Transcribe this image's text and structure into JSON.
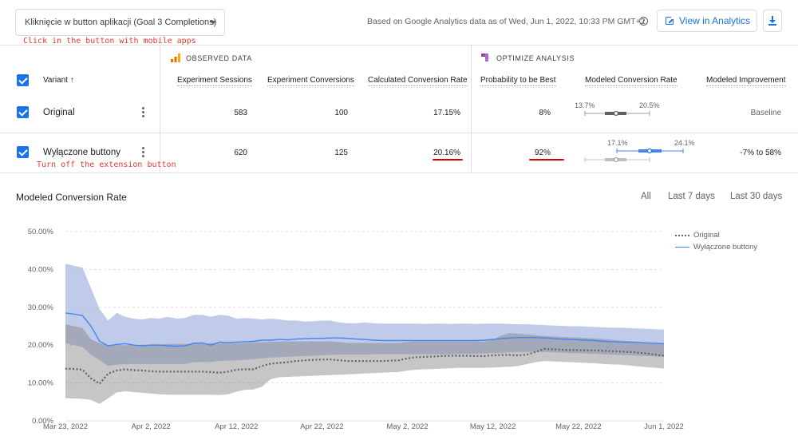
{
  "toolbar": {
    "goal_select_value": "Kliknięcie w button aplikacji (Goal 3 Completions)",
    "based_on_text": "Based on Google Analytics data as of Wed, Jun 1, 2022, 10:33 PM GMT+2.",
    "view_button_label": "View in Analytics",
    "icons": [
      "chevron-down-icon",
      "info-icon",
      "open-external-icon",
      "download-icon"
    ]
  },
  "annotations": {
    "goal_note": "Click in the button with mobile apps",
    "variant_note": "Turn off the extension button"
  },
  "table": {
    "observed_header": "OBSERVED DATA",
    "optimize_header": "OPTIMIZE ANALYSIS",
    "columns": {
      "variant": "Variant ↑",
      "sessions": "Experiment Sessions",
      "conversions": "Experiment Conversions",
      "calc_rate": "Calculated Conversion Rate",
      "prob_best": "Probability to be Best",
      "modeled_rate": "Modeled Conversion Rate",
      "modeled_improvement": "Modeled Improvement"
    },
    "rows": [
      {
        "name": "Original",
        "sessions": "583",
        "conversions": "100",
        "calc_rate": "17.15%",
        "prob_best": "8%",
        "ci_low": "13.7%",
        "ci_high": "20.5%",
        "ci": [
          13.7,
          20.5
        ],
        "improvement": "Baseline"
      },
      {
        "name": "Wyłączone buttony",
        "sessions": "620",
        "conversions": "125",
        "calc_rate": "20.16%",
        "prob_best": "92%",
        "ci_low": "17.1%",
        "ci_high": "24.1%",
        "ci": [
          17.1,
          24.1
        ],
        "improvement": "-7% to 58%"
      }
    ]
  },
  "chart_section": {
    "title": "Modeled Conversion Rate",
    "ranges": [
      "All",
      "Last 7 days",
      "Last 30 days"
    ]
  },
  "chart_data": {
    "type": "line",
    "title": "Modeled Conversion Rate",
    "x": [
      "Mar 23",
      "Mar 24",
      "Mar 25",
      "Mar 26",
      "Mar 27",
      "Mar 28",
      "Mar 29",
      "Mar 30",
      "Mar 31",
      "Apr 1",
      "Apr 2",
      "Apr 3",
      "Apr 4",
      "Apr 5",
      "Apr 6",
      "Apr 7",
      "Apr 8",
      "Apr 9",
      "Apr 10",
      "Apr 11",
      "Apr 12",
      "Apr 13",
      "Apr 14",
      "Apr 15",
      "Apr 16",
      "Apr 17",
      "Apr 18",
      "Apr 19",
      "Apr 20",
      "Apr 21",
      "Apr 22",
      "Apr 23",
      "Apr 24",
      "Apr 25",
      "Apr 26",
      "Apr 27",
      "Apr 28",
      "Apr 29",
      "Apr 30",
      "May 1",
      "May 2",
      "May 3",
      "May 4",
      "May 5",
      "May 6",
      "May 7",
      "May 8",
      "May 9",
      "May 10",
      "May 11",
      "May 12",
      "May 13",
      "May 14",
      "May 15",
      "May 16",
      "May 17",
      "May 18",
      "May 19",
      "May 20",
      "May 21",
      "May 22",
      "May 23",
      "May 24",
      "May 25",
      "May 26",
      "May 27",
      "May 28",
      "May 29",
      "May 30",
      "May 31",
      "Jun 1"
    ],
    "x_ticks": [
      "Mar 23, 2022",
      "Apr 2, 2022",
      "Apr 12, 2022",
      "Apr 22, 2022",
      "May 2, 2022",
      "May 12, 2022",
      "May 22, 2022",
      "Jun 1, 2022"
    ],
    "y_ticks": [
      "0.00%",
      "10.00%",
      "20.00%",
      "30.00%",
      "40.00%",
      "50.00%"
    ],
    "ylim": [
      0,
      50
    ],
    "grid": true,
    "legend_position": "top-right",
    "series": [
      {
        "name": "Original",
        "style": "dotted",
        "color": "#5f6368",
        "values": [
          13.8,
          13.7,
          13.5,
          11.2,
          9.8,
          12.5,
          13.3,
          13.6,
          13.4,
          13.3,
          13.1,
          13.0,
          13.0,
          13.0,
          13.0,
          13.0,
          13.0,
          12.9,
          12.7,
          13.0,
          13.5,
          13.6,
          13.6,
          14.5,
          15.1,
          15.3,
          15.5,
          15.8,
          16.0,
          16.1,
          16.2,
          16.2,
          16.0,
          15.8,
          15.8,
          15.8,
          15.8,
          15.8,
          15.9,
          16.0,
          16.5,
          16.8,
          16.9,
          17.0,
          17.1,
          17.2,
          17.2,
          17.2,
          17.1,
          17.1,
          17.3,
          17.4,
          17.4,
          17.3,
          17.5,
          18.2,
          19.0,
          18.9,
          18.8,
          18.7,
          18.7,
          18.6,
          18.6,
          18.5,
          18.4,
          18.3,
          18.2,
          18.0,
          17.8,
          17.5,
          17.2
        ],
        "band_low": [
          6.0,
          5.9,
          5.8,
          5.5,
          4.5,
          6.0,
          7.5,
          7.8,
          7.6,
          7.4,
          7.2,
          7.0,
          6.9,
          6.9,
          6.9,
          6.9,
          6.9,
          6.9,
          6.8,
          7.0,
          7.7,
          8.2,
          8.3,
          9.0,
          11.0,
          11.5,
          11.6,
          11.7,
          11.8,
          11.9,
          12.0,
          12.1,
          12.2,
          12.3,
          12.4,
          12.5,
          12.6,
          12.7,
          12.8,
          12.9,
          13.3,
          13.5,
          13.6,
          13.7,
          13.8,
          13.9,
          14.0,
          14.0,
          14.0,
          14.0,
          14.1,
          14.2,
          14.3,
          14.5,
          15.0,
          15.5,
          15.8,
          15.7,
          15.6,
          15.5,
          15.4,
          15.3,
          15.2,
          15.0,
          14.9,
          14.8,
          14.6,
          14.4,
          14.2,
          14.0,
          13.8
        ],
        "band_high": [
          25.5,
          25.0,
          24.5,
          21.5,
          20.5,
          20.0,
          20.0,
          20.0,
          20.0,
          20.1,
          20.2,
          20.2,
          20.3,
          20.3,
          20.3,
          20.4,
          20.4,
          20.5,
          20.5,
          20.5,
          20.5,
          20.6,
          20.7,
          20.8,
          20.9,
          21.0,
          21.0,
          21.0,
          21.0,
          21.0,
          21.0,
          21.0,
          20.8,
          20.6,
          20.6,
          20.6,
          20.6,
          20.6,
          20.6,
          20.6,
          20.8,
          21.0,
          21.0,
          21.0,
          21.0,
          21.0,
          21.0,
          21.0,
          21.0,
          21.0,
          21.5,
          22.5,
          23.2,
          23.0,
          22.8,
          22.6,
          22.4,
          22.3,
          22.2,
          22.1,
          22.0,
          21.9,
          21.8,
          21.6,
          21.4,
          21.2,
          21.0,
          20.9,
          20.7,
          20.5,
          20.3
        ]
      },
      {
        "name": "Wyłączone buttony",
        "style": "solid",
        "color": "#4285f4",
        "values": [
          28.5,
          28.2,
          27.8,
          25.0,
          21.0,
          19.8,
          20.2,
          20.4,
          20.0,
          19.8,
          20.0,
          20.0,
          19.8,
          19.7,
          19.8,
          20.5,
          20.6,
          20.0,
          20.8,
          20.7,
          20.8,
          20.9,
          21.0,
          21.3,
          21.3,
          21.5,
          21.4,
          21.6,
          21.7,
          21.8,
          21.8,
          21.9,
          21.9,
          21.8,
          21.6,
          21.5,
          21.3,
          21.2,
          21.2,
          21.2,
          21.2,
          21.2,
          21.2,
          21.2,
          21.2,
          21.2,
          21.2,
          21.2,
          21.2,
          21.3,
          21.5,
          21.7,
          21.9,
          22.0,
          22.0,
          22.0,
          21.9,
          21.7,
          21.6,
          21.5,
          21.4,
          21.3,
          21.2,
          21.0,
          20.9,
          20.8,
          20.8,
          20.7,
          20.6,
          20.5,
          20.4
        ],
        "band_low": [
          20.5,
          20.0,
          19.5,
          17.5,
          16.0,
          14.5,
          14.8,
          15.0,
          15.0,
          15.0,
          15.0,
          15.0,
          15.0,
          15.0,
          15.0,
          15.5,
          15.6,
          15.5,
          15.8,
          15.9,
          16.0,
          16.1,
          16.3,
          16.5,
          16.7,
          16.8,
          16.9,
          17.0,
          17.1,
          17.2,
          17.3,
          17.4,
          17.5,
          17.5,
          17.5,
          17.5,
          17.6,
          17.6,
          17.6,
          17.6,
          17.6,
          17.6,
          17.6,
          17.6,
          17.6,
          17.6,
          17.7,
          17.7,
          17.7,
          17.8,
          17.9,
          18.0,
          18.1,
          18.2,
          18.2,
          18.2,
          18.2,
          18.1,
          18.0,
          17.9,
          17.9,
          17.8,
          17.7,
          17.6,
          17.5,
          17.4,
          17.3,
          17.2,
          17.1,
          17.0,
          16.9
        ],
        "band_high": [
          41.5,
          41.0,
          40.5,
          35.0,
          29.5,
          26.5,
          28.5,
          27.5,
          27.0,
          26.8,
          27.2,
          27.0,
          27.5,
          27.0,
          27.2,
          28.0,
          28.0,
          27.5,
          28.0,
          27.8,
          27.0,
          27.2,
          27.0,
          26.8,
          27.0,
          26.8,
          26.5,
          26.5,
          26.2,
          26.3,
          26.5,
          26.5,
          26.0,
          25.8,
          25.8,
          26.0,
          25.8,
          25.7,
          25.7,
          25.7,
          25.7,
          25.7,
          25.6,
          25.7,
          25.7,
          25.6,
          25.7,
          25.7,
          25.6,
          25.7,
          25.7,
          25.7,
          25.6,
          25.5,
          25.5,
          25.4,
          25.3,
          25.2,
          25.1,
          25.0,
          25.0,
          24.9,
          24.8,
          24.7,
          24.6,
          24.6,
          24.5,
          24.4,
          24.3,
          24.2,
          24.1
        ]
      }
    ]
  }
}
